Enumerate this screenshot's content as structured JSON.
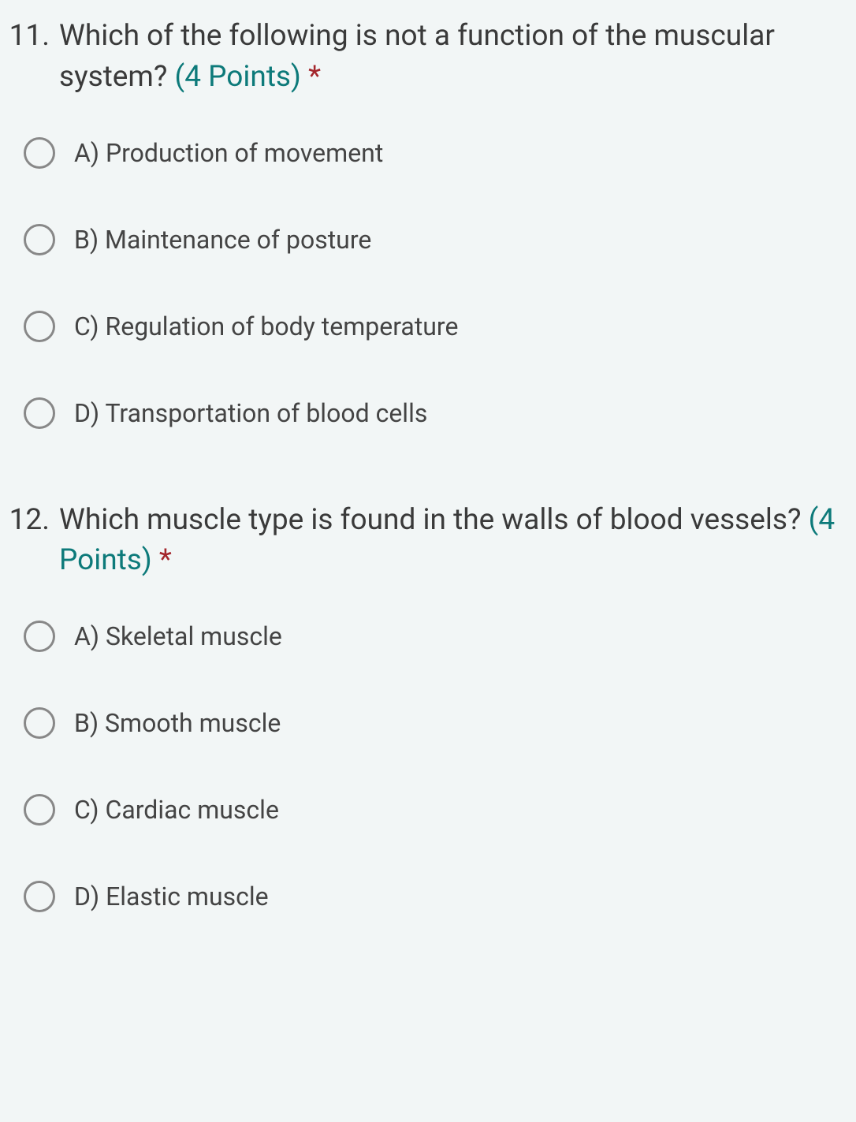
{
  "colors": {
    "background": "#f2f6f6",
    "text": "#3a3a3a",
    "points": "#0d7a7a",
    "required": "#a4262c",
    "radio_border": "#888888"
  },
  "questions": [
    {
      "number": "11.",
      "text": "Which of the following is not a function of the muscular system?",
      "points_label": "(4 Points)",
      "required_marker": "*",
      "options": [
        {
          "label": "A) Production of movement"
        },
        {
          "label": "B) Maintenance of posture"
        },
        {
          "label": "C) Regulation of body temperature"
        },
        {
          "label": "D) Transportation of blood cells"
        }
      ]
    },
    {
      "number": "12.",
      "text": "Which muscle type is found in the walls of blood vessels?",
      "points_label": "(4 Points)",
      "required_marker": "*",
      "options": [
        {
          "label": "A) Skeletal muscle"
        },
        {
          "label": "B) Smooth muscle"
        },
        {
          "label": "C) Cardiac muscle"
        },
        {
          "label": "D) Elastic muscle"
        }
      ]
    }
  ]
}
